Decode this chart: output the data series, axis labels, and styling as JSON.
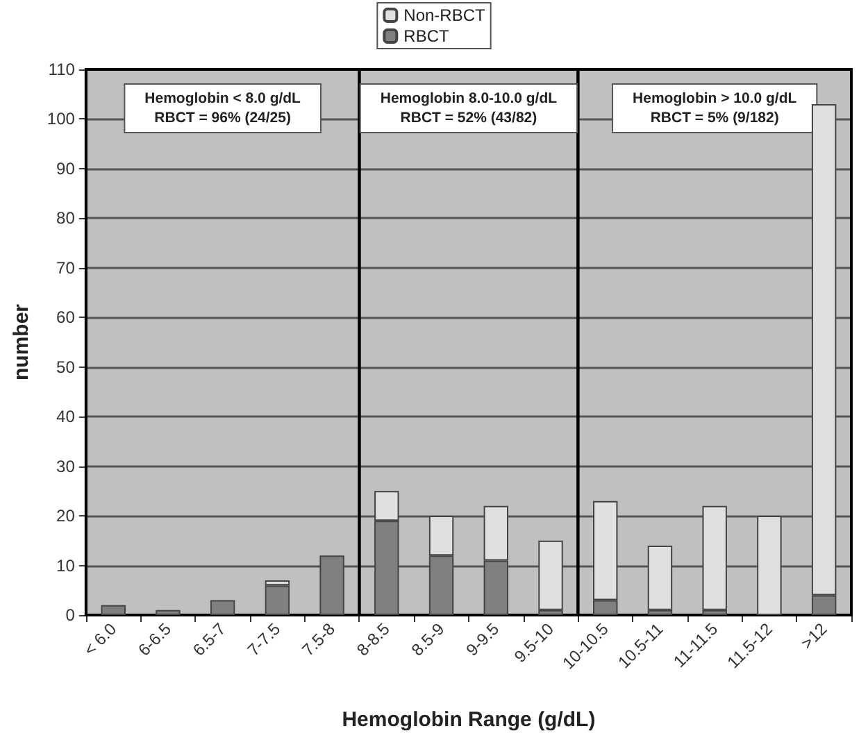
{
  "chart_data": {
    "type": "bar",
    "stacked": true,
    "xlabel": "Hemoglobin Range (g/dL)",
    "ylabel": "number",
    "categories": [
      "< 6.0",
      "6-6.5",
      "6.5-7",
      "7-7.5",
      "7.5-8",
      "8-8.5",
      "8.5-9",
      "9-9.5",
      "9.5-10",
      "10-10.5",
      "10.5-11",
      "11-11.5",
      "11.5-12",
      ">12"
    ],
    "series": [
      {
        "name": "RBCT",
        "color": "#808080",
        "values": [
          2,
          1,
          3,
          6,
          12,
          19,
          12,
          11,
          1,
          3,
          1,
          1,
          0,
          4
        ]
      },
      {
        "name": "Non-RBCT",
        "color": "#e0e0e0",
        "values": [
          0,
          0,
          0,
          1,
          0,
          6,
          8,
          11,
          14,
          20,
          13,
          21,
          20,
          99
        ]
      }
    ],
    "ylim": [
      0,
      110
    ],
    "yticks": [
      0,
      10,
      20,
      30,
      40,
      50,
      60,
      70,
      80,
      90,
      100,
      110
    ],
    "grid": "y",
    "legend": "top",
    "bands": [
      {
        "axis": "x",
        "from": "< 6.0",
        "to": "7.5-8",
        "label": "Hemoglobin < 8.0 g/dL\nRBCT = 96% (24/25)"
      },
      {
        "axis": "x",
        "from": "8-8.5",
        "to": "9.5-10",
        "label": "Hemoglobin 8.0-10.0 g/dL\nRBCT = 52% (43/82)"
      },
      {
        "axis": "x",
        "from": "10-10.5",
        "to": ">12",
        "label": "Hemoglobin > 10.0 g/dL\nRBCT = 5% (9/182)"
      }
    ]
  }
}
